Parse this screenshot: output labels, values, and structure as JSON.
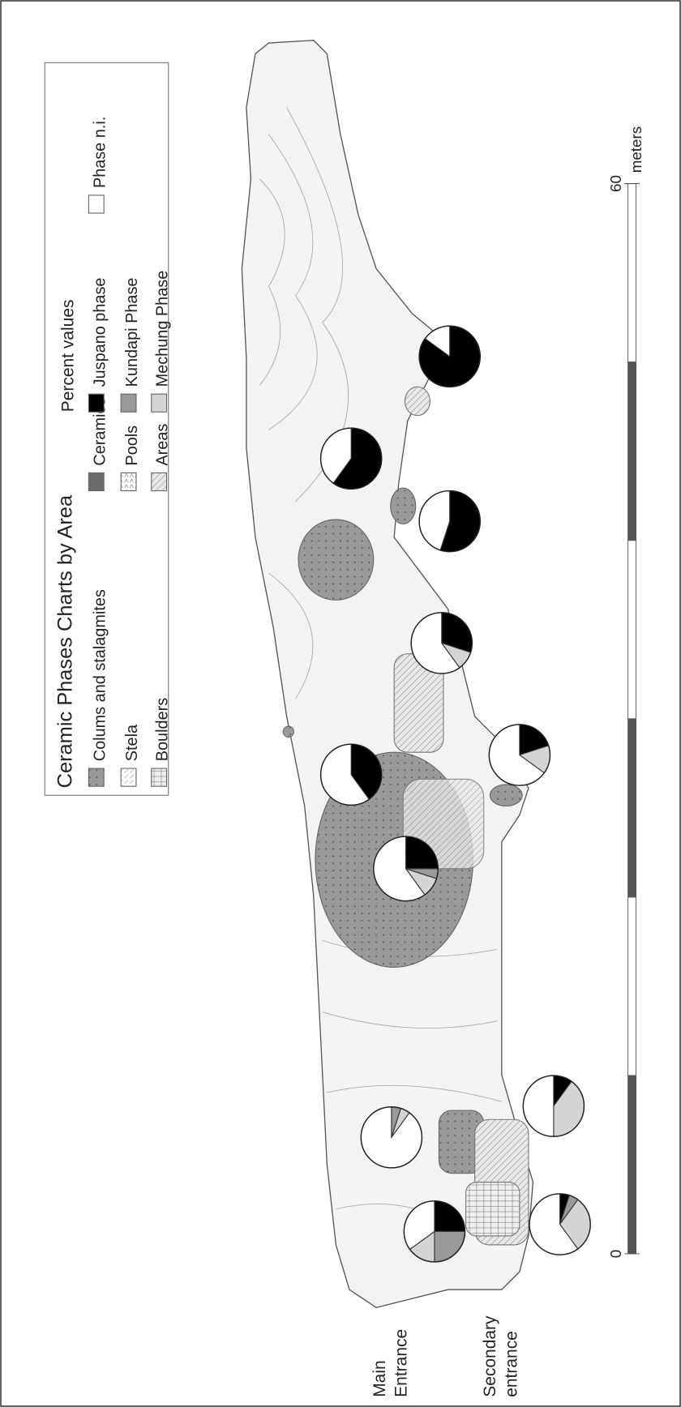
{
  "legend": {
    "title": "Ceramic Phases Charts by Area",
    "features": [
      "Colums and stalagmites",
      "Stela",
      "Boulders",
      "Ceramics",
      "Pools",
      "Areas"
    ],
    "percent_title": "Percent values",
    "phases": [
      {
        "name": "Juspano phase",
        "color": "#000000"
      },
      {
        "name": "Kundapi Phase",
        "color": "#999999"
      },
      {
        "name": "Mechung  Phase",
        "color": "#d4d4d4"
      },
      {
        "name": "Phase n.i.",
        "color": "#ffffff"
      }
    ]
  },
  "labels": {
    "main_entrance": [
      "Main",
      "Entrance"
    ],
    "secondary_entrance": [
      "Secondary",
      "entrance"
    ]
  },
  "scale": {
    "ticks": [
      0,
      60
    ],
    "unit": "meters"
  },
  "pies": [
    {
      "values": [
        85,
        0,
        0,
        15
      ]
    },
    {
      "values": [
        60,
        0,
        0,
        40
      ]
    },
    {
      "values": [
        55,
        0,
        0,
        45
      ]
    },
    {
      "values": [
        30,
        0,
        10,
        60
      ]
    },
    {
      "values": [
        40,
        0,
        0,
        60
      ]
    },
    {
      "values": [
        20,
        0,
        15,
        65
      ]
    },
    {
      "values": [
        25,
        5,
        10,
        60
      ]
    },
    {
      "values": [
        10,
        0,
        40,
        50
      ]
    },
    {
      "values": [
        0,
        5,
        5,
        90
      ]
    },
    {
      "values": [
        25,
        25,
        15,
        35
      ]
    },
    {
      "values": [
        5,
        5,
        30,
        60
      ]
    }
  ]
}
